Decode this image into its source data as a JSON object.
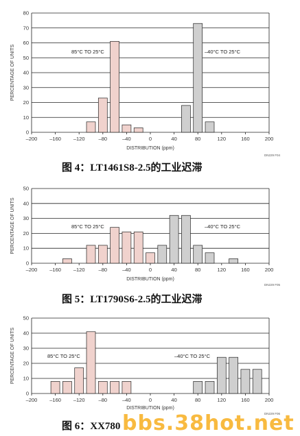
{
  "chart_data": [
    {
      "type": "bar",
      "ylabel": "PERCENTAGE OF UNITS",
      "xlabel": "DISTRIBUTION (ppm)",
      "ylim": [
        0,
        80
      ],
      "xlim": [
        -200,
        200
      ],
      "yticks": [
        0,
        10,
        20,
        30,
        40,
        50,
        60,
        70,
        80
      ],
      "xticks": [
        -200,
        -160,
        -120,
        -80,
        -40,
        0,
        40,
        80,
        120,
        160,
        200
      ],
      "grid": true,
      "bar_width": 15,
      "series": [
        {
          "label": "85°C TO 25°C",
          "color": "#f0d2cd",
          "x": [
            -100,
            -80,
            -60,
            -40,
            -20
          ],
          "values": [
            7,
            23,
            61,
            5,
            3
          ]
        },
        {
          "label": "–40°C TO 25°C",
          "color": "#cfcfcf",
          "x": [
            60,
            80,
            100
          ],
          "values": [
            18,
            73,
            7
          ]
        }
      ],
      "code": "DN229 F04",
      "caption": "图 4：LT1461S8-2.5的工业迟滞"
    },
    {
      "type": "bar",
      "ylabel": "PERCENTAGE OF UNITS",
      "xlabel": "DISTRIBUTION (ppm)",
      "ylim": [
        0,
        50
      ],
      "xlim": [
        -200,
        200
      ],
      "yticks": [
        0,
        10,
        20,
        30,
        40,
        50
      ],
      "xticks": [
        -200,
        -160,
        -120,
        -80,
        -40,
        0,
        40,
        80,
        120,
        160,
        200
      ],
      "grid": true,
      "bar_width": 15,
      "series": [
        {
          "label": "85°C TO 25°C",
          "color": "#f0d2cd",
          "x": [
            -140,
            -100,
            -80,
            -60,
            -40,
            -20,
            0
          ],
          "values": [
            3,
            12,
            12,
            24,
            21,
            21,
            7
          ]
        },
        {
          "label": "–40°C TO 25°C",
          "color": "#cfcfcf",
          "x": [
            20,
            40,
            60,
            80,
            100,
            140
          ],
          "values": [
            12,
            32,
            32,
            12,
            7,
            3
          ]
        }
      ],
      "code": "DN229 F05",
      "caption": "图 5：LT1790S6-2.5的工业迟滞"
    },
    {
      "type": "bar",
      "ylabel": "PERCENTAGE OF UNITS",
      "xlabel": "DISTRIBUTION (ppm)",
      "ylim": [
        0,
        50
      ],
      "xlim": [
        -200,
        200
      ],
      "yticks": [
        0,
        10,
        20,
        30,
        40,
        50
      ],
      "xticks": [
        -200,
        -160,
        -120,
        -80,
        -40,
        0,
        40,
        80,
        120,
        160,
        200
      ],
      "grid": true,
      "bar_width": 15,
      "series": [
        {
          "label": "85°C TO 25°C",
          "color": "#f0d2cd",
          "x": [
            -160,
            -140,
            -120,
            -100,
            -80,
            -60,
            -40
          ],
          "values": [
            8,
            8,
            17,
            41,
            8,
            8,
            8
          ]
        },
        {
          "label": "–40°C TO 25°C",
          "color": "#cfcfcf",
          "x": [
            80,
            100,
            120,
            140,
            160,
            180
          ],
          "values": [
            8,
            8,
            24,
            24,
            16,
            16
          ]
        }
      ],
      "code": "DN229 F06",
      "caption": "图 6：XX780"
    }
  ],
  "watermark": "bbs.38hot.net"
}
